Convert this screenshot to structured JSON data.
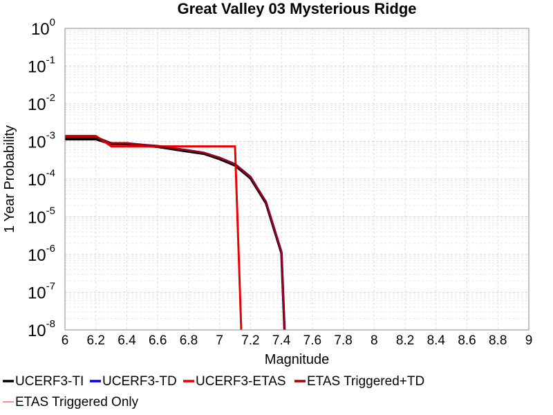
{
  "chart_data": {
    "type": "line",
    "title": "Great Valley 03 Mysterious Ridge",
    "xlabel": "Magnitude",
    "ylabel": "1 Year Probability",
    "xlim": [
      6,
      9
    ],
    "ylim": [
      1e-08,
      1
    ],
    "yscale": "log",
    "grid": true,
    "legend_position": "bottom",
    "x_ticks": [
      "6",
      "6.2",
      "6.4",
      "6.6",
      "6.8",
      "7",
      "7.2",
      "7.4",
      "7.6",
      "7.8",
      "8",
      "8.2",
      "8.4",
      "8.6",
      "8.8",
      "9"
    ],
    "y_ticks": [
      {
        "base": "10",
        "exp": "0",
        "value": 1
      },
      {
        "base": "10",
        "exp": "-1",
        "value": 0.1
      },
      {
        "base": "10",
        "exp": "-2",
        "value": 0.01
      },
      {
        "base": "10",
        "exp": "-3",
        "value": 0.001
      },
      {
        "base": "10",
        "exp": "-4",
        "value": 0.0001
      },
      {
        "base": "10",
        "exp": "-5",
        "value": 1e-05
      },
      {
        "base": "10",
        "exp": "-6",
        "value": 1e-06
      },
      {
        "base": "10",
        "exp": "-7",
        "value": 1e-07
      },
      {
        "base": "10",
        "exp": "-8",
        "value": 1e-08
      }
    ],
    "series": [
      {
        "name": "UCERF3-TI",
        "color": "#000000",
        "x": [
          6.0,
          6.2,
          6.3,
          6.4,
          6.5,
          6.6,
          6.7,
          6.8,
          6.9,
          7.0,
          7.1,
          7.2,
          7.3,
          7.4,
          7.42
        ],
        "y": [
          0.00115,
          0.00115,
          0.00085,
          0.00085,
          0.00078,
          0.00072,
          0.00062,
          0.00054,
          0.00047,
          0.00034,
          0.00023,
          0.000105,
          2.3e-05,
          1.1e-06,
          1e-08
        ]
      },
      {
        "name": "UCERF3-TD",
        "color": "#0000ee",
        "x": [
          6.0,
          6.2,
          6.3,
          6.4,
          6.5,
          6.6,
          6.7,
          6.8,
          6.9,
          7.0,
          7.1,
          7.2,
          7.3,
          7.4,
          7.42
        ],
        "y": [
          0.0013,
          0.0013,
          0.0009,
          0.0009,
          0.00082,
          0.00076,
          0.00066,
          0.00058,
          0.0005,
          0.00037,
          0.00025,
          0.000115,
          2.5e-05,
          1.2e-06,
          1e-08
        ]
      },
      {
        "name": "UCERF3-ETAS",
        "color": "#ee0000",
        "x": [
          6.0,
          6.2,
          6.3,
          6.4,
          6.5,
          6.6,
          6.7,
          6.8,
          6.9,
          7.0,
          7.1,
          7.14
        ],
        "y": [
          0.0014,
          0.0014,
          0.00074,
          0.00074,
          0.00074,
          0.00074,
          0.00074,
          0.00074,
          0.00074,
          0.00074,
          0.00074,
          1e-08
        ]
      },
      {
        "name": "ETAS Triggered+TD",
        "color": "#aa0000",
        "x": [
          6.0,
          6.2,
          6.3,
          6.4,
          6.5,
          6.6,
          6.7,
          6.8,
          6.9,
          7.0,
          7.1,
          7.2,
          7.3,
          7.4,
          7.42
        ],
        "y": [
          0.00132,
          0.00132,
          0.00088,
          0.0009,
          0.00082,
          0.00076,
          0.00066,
          0.00058,
          0.0005,
          0.00037,
          0.00025,
          0.000115,
          2.5e-05,
          1.2e-06,
          1e-08
        ]
      },
      {
        "name": "ETAS Triggered Only",
        "color": "#ff8888",
        "x": [],
        "y": []
      }
    ]
  }
}
